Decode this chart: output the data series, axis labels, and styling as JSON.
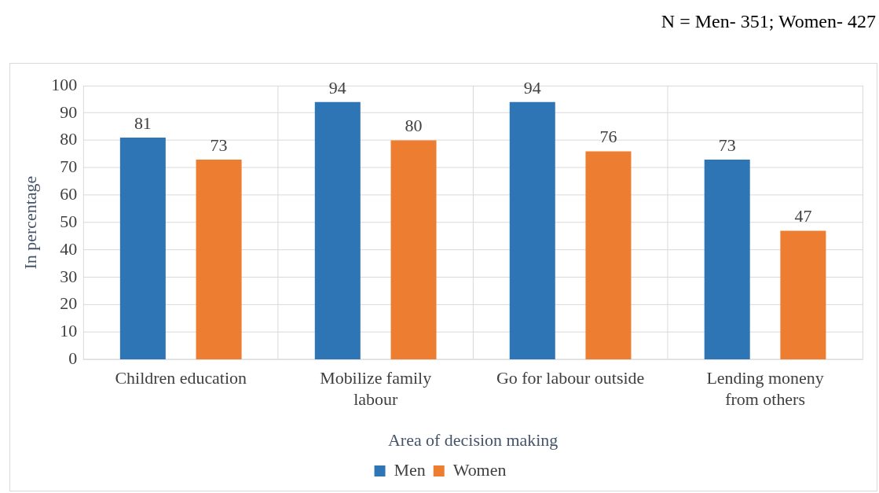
{
  "chart_data": {
    "type": "bar",
    "annotations": [
      "N = Men- 351; Women- 427"
    ],
    "xlabel": "Area of decision making",
    "ylabel": "In percentage",
    "categories": [
      "Children education",
      "Mobilize family labour",
      "Go for labour outside",
      "Lending moneny from others"
    ],
    "series": [
      {
        "name": "Men",
        "color": "#2e75b6",
        "values": [
          81,
          94,
          94,
          73
        ]
      },
      {
        "name": "Women",
        "color": "#ed7d31",
        "values": [
          73,
          80,
          76,
          47
        ]
      }
    ],
    "ylim": [
      0,
      100
    ],
    "yticks": [
      0,
      10,
      20,
      30,
      40,
      50,
      60,
      70,
      80,
      90,
      100
    ],
    "grid": true,
    "legend": "bottom",
    "data_labels": true
  }
}
